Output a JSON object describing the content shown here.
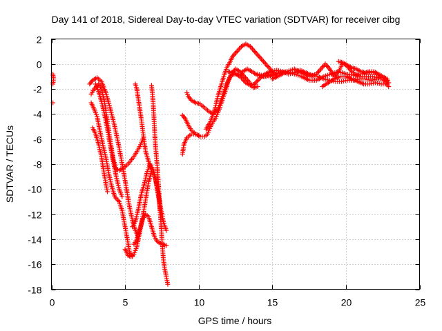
{
  "chart_data": {
    "type": "scatter",
    "title": "Day 141 of 2018, Sidereal Day-to-day VTEC variation (SDTVAR) for receiver cibg",
    "xlabel": "GPS time / hours",
    "ylabel": "SDTVAR / TECUs",
    "xlim": [
      0,
      25
    ],
    "ylim": [
      -18,
      2
    ],
    "xticks": [
      0,
      5,
      10,
      15,
      20,
      25
    ],
    "yticks": [
      2,
      0,
      -2,
      -4,
      -6,
      -8,
      -10,
      -12,
      -14,
      -16,
      -18
    ],
    "grid": true,
    "marker": "+",
    "color": "#ff0000",
    "series": [
      {
        "name": "arc-start-1",
        "points": [
          [
            0.1,
            -0.8
          ],
          [
            0.15,
            -1.2
          ],
          [
            0.1,
            -1.6
          ]
        ]
      },
      {
        "name": "arc-start-2",
        "points": [
          [
            0.1,
            -3.1
          ]
        ]
      },
      {
        "name": "arc-a",
        "points": [
          [
            2.6,
            -1.6
          ],
          [
            2.8,
            -1.3
          ],
          [
            3.1,
            -1.1
          ],
          [
            3.4,
            -1.4
          ],
          [
            3.7,
            -2.3
          ],
          [
            4.0,
            -3.6
          ],
          [
            4.3,
            -5.0
          ],
          [
            4.6,
            -6.7
          ],
          [
            4.9,
            -8.6
          ],
          [
            5.1,
            -10.0
          ],
          [
            5.3,
            -11.4
          ],
          [
            5.5,
            -12.5
          ],
          [
            5.7,
            -13.3
          ],
          [
            5.9,
            -13.8
          ]
        ]
      },
      {
        "name": "arc-b",
        "points": [
          [
            2.7,
            -2.4
          ],
          [
            2.9,
            -2.0
          ],
          [
            3.2,
            -1.6
          ],
          [
            3.4,
            -2.0
          ],
          [
            3.6,
            -3.0
          ],
          [
            3.8,
            -4.6
          ],
          [
            4.0,
            -6.2
          ],
          [
            4.2,
            -7.6
          ],
          [
            4.4,
            -8.4
          ],
          [
            4.6,
            -8.5
          ],
          [
            4.9,
            -8.3
          ],
          [
            5.2,
            -8.0
          ],
          [
            5.6,
            -7.4
          ],
          [
            6.0,
            -6.6
          ],
          [
            6.2,
            -6.0
          ]
        ]
      },
      {
        "name": "arc-c",
        "points": [
          [
            2.7,
            -3.1
          ],
          [
            2.9,
            -3.6
          ],
          [
            3.1,
            -4.2
          ],
          [
            3.3,
            -5.4
          ],
          [
            3.5,
            -6.5
          ],
          [
            3.7,
            -7.5
          ],
          [
            3.9,
            -8.8
          ],
          [
            4.1,
            -9.8
          ],
          [
            4.3,
            -10.6
          ],
          [
            4.6,
            -11.0
          ],
          [
            4.8,
            -11.7
          ],
          [
            5.0,
            -13.0
          ],
          [
            5.2,
            -14.3
          ],
          [
            5.3,
            -15.0
          ],
          [
            5.5,
            -15.4
          ]
        ]
      },
      {
        "name": "arc-d",
        "points": [
          [
            2.8,
            -5.1
          ],
          [
            3.0,
            -5.6
          ],
          [
            3.2,
            -6.4
          ],
          [
            3.4,
            -7.4
          ],
          [
            3.5,
            -8.2
          ],
          [
            3.6,
            -8.9
          ],
          [
            3.7,
            -9.6
          ],
          [
            3.8,
            -10.2
          ]
        ]
      },
      {
        "name": "arc-e",
        "points": [
          [
            3.0,
            -1.6
          ],
          [
            3.2,
            -2.2
          ],
          [
            3.4,
            -3.0
          ],
          [
            3.6,
            -4.0
          ],
          [
            3.8,
            -5.2
          ],
          [
            4.0,
            -6.5
          ],
          [
            4.2,
            -7.8
          ],
          [
            4.4,
            -9.0
          ],
          [
            4.6,
            -10.0
          ],
          [
            4.8,
            -10.6
          ]
        ]
      },
      {
        "name": "arc-f",
        "points": [
          [
            5.0,
            -14.8
          ],
          [
            5.2,
            -15.3
          ],
          [
            5.4,
            -15.4
          ],
          [
            5.6,
            -15.2
          ],
          [
            5.8,
            -14.6
          ],
          [
            6.0,
            -13.4
          ],
          [
            6.2,
            -12.2
          ],
          [
            6.4,
            -10.8
          ],
          [
            6.6,
            -9.4
          ],
          [
            6.8,
            -8.6
          ],
          [
            7.0,
            -8.8
          ],
          [
            7.2,
            -10.0
          ],
          [
            7.4,
            -11.4
          ],
          [
            7.6,
            -12.6
          ],
          [
            7.8,
            -13.3
          ]
        ]
      },
      {
        "name": "arc-g",
        "points": [
          [
            5.6,
            -14.4
          ],
          [
            5.8,
            -14.0
          ],
          [
            6.0,
            -13.2
          ],
          [
            6.2,
            -12.4
          ],
          [
            6.4,
            -12.0
          ],
          [
            6.6,
            -12.2
          ],
          [
            6.8,
            -13.0
          ],
          [
            7.0,
            -13.8
          ],
          [
            7.2,
            -14.2
          ],
          [
            7.5,
            -14.4
          ],
          [
            7.8,
            -14.5
          ]
        ]
      },
      {
        "name": "arc-h",
        "points": [
          [
            5.5,
            -13.0
          ],
          [
            5.7,
            -12.6
          ],
          [
            5.9,
            -11.6
          ],
          [
            6.1,
            -10.4
          ],
          [
            6.3,
            -9.6
          ],
          [
            6.5,
            -8.6
          ],
          [
            6.7,
            -8.0
          ],
          [
            6.9,
            -8.4
          ],
          [
            7.1,
            -9.4
          ],
          [
            7.3,
            -10.8
          ],
          [
            7.4,
            -12.0
          ]
        ]
      },
      {
        "name": "arc-i",
        "points": [
          [
            5.7,
            -1.6
          ],
          [
            5.8,
            -2.0
          ],
          [
            5.9,
            -2.8
          ],
          [
            6.0,
            -3.6
          ],
          [
            6.1,
            -4.4
          ],
          [
            6.2,
            -5.3
          ],
          [
            6.3,
            -6.2
          ],
          [
            6.4,
            -7.0
          ],
          [
            6.6,
            -7.8
          ],
          [
            6.8,
            -8.6
          ]
        ]
      },
      {
        "name": "arc-j",
        "points": [
          [
            6.8,
            -1.7
          ],
          [
            6.85,
            -2.3
          ],
          [
            6.9,
            -3.0
          ],
          [
            6.95,
            -4.0
          ],
          [
            7.0,
            -5.2
          ],
          [
            7.05,
            -6.3
          ],
          [
            7.1,
            -7.0
          ],
          [
            7.2,
            -8.4
          ],
          [
            7.3,
            -10.2
          ],
          [
            7.4,
            -12.0
          ],
          [
            7.5,
            -14.0
          ],
          [
            7.6,
            -15.6
          ],
          [
            7.7,
            -16.4
          ],
          [
            7.8,
            -17.0
          ],
          [
            7.9,
            -17.6
          ]
        ]
      },
      {
        "name": "arc-k",
        "points": [
          [
            8.9,
            -7.2
          ],
          [
            9.0,
            -6.4
          ],
          [
            9.2,
            -5.9
          ],
          [
            9.5,
            -5.6
          ],
          [
            9.8,
            -5.6
          ],
          [
            10.1,
            -5.8
          ],
          [
            10.4,
            -5.8
          ],
          [
            10.6,
            -5.6
          ],
          [
            10.8,
            -5.0
          ],
          [
            11.0,
            -4.6
          ],
          [
            11.2,
            -4.2
          ],
          [
            11.4,
            -3.6
          ],
          [
            11.6,
            -2.9
          ],
          [
            11.8,
            -2.2
          ],
          [
            12.0,
            -1.4
          ],
          [
            12.2,
            -0.8
          ],
          [
            12.5,
            -0.4
          ],
          [
            12.8,
            -0.6
          ],
          [
            13.1,
            -1.0
          ],
          [
            13.4,
            -1.4
          ],
          [
            13.7,
            -1.9
          ],
          [
            14.0,
            -1.8
          ]
        ]
      },
      {
        "name": "arc-l",
        "points": [
          [
            8.9,
            -4.1
          ],
          [
            9.1,
            -4.4
          ],
          [
            9.3,
            -4.9
          ],
          [
            9.5,
            -5.3
          ],
          [
            9.8,
            -5.6
          ],
          [
            10.0,
            -5.7
          ]
        ]
      },
      {
        "name": "arc-m",
        "points": [
          [
            9.2,
            -2.3
          ],
          [
            9.3,
            -2.6
          ],
          [
            9.5,
            -2.9
          ],
          [
            9.8,
            -3.1
          ],
          [
            10.1,
            -3.2
          ],
          [
            10.4,
            -3.5
          ],
          [
            10.7,
            -3.8
          ],
          [
            11.0,
            -4.0
          ],
          [
            11.3,
            -3.6
          ],
          [
            11.6,
            -2.6
          ],
          [
            11.9,
            -1.6
          ],
          [
            12.2,
            -0.9
          ],
          [
            12.5,
            -0.8
          ],
          [
            12.8,
            -1.0
          ],
          [
            13.0,
            -0.6
          ],
          [
            13.3,
            -0.4
          ],
          [
            13.6,
            -0.6
          ],
          [
            14.0,
            -0.9
          ],
          [
            14.4,
            -1.0
          ],
          [
            14.8,
            -0.9
          ],
          [
            15.2,
            -0.8
          ]
        ]
      },
      {
        "name": "arc-n",
        "points": [
          [
            10.5,
            -5.2
          ],
          [
            10.8,
            -4.6
          ],
          [
            11.1,
            -3.6
          ],
          [
            11.3,
            -2.6
          ],
          [
            11.5,
            -1.8
          ],
          [
            11.7,
            -1.0
          ],
          [
            11.9,
            -0.3
          ],
          [
            12.1,
            0.1
          ],
          [
            12.3,
            0.6
          ],
          [
            12.6,
            1.0
          ],
          [
            12.9,
            1.4
          ],
          [
            13.2,
            1.6
          ],
          [
            13.5,
            1.4
          ],
          [
            13.8,
            1.0
          ],
          [
            14.1,
            0.6
          ],
          [
            14.4,
            0.2
          ],
          [
            14.7,
            -0.2
          ],
          [
            15.0,
            -0.6
          ],
          [
            15.3,
            -0.9
          ]
        ]
      },
      {
        "name": "arc-o",
        "points": [
          [
            12.0,
            -0.6
          ],
          [
            12.3,
            -0.7
          ],
          [
            12.6,
            -0.8
          ],
          [
            12.9,
            -1.1
          ],
          [
            13.2,
            -1.5
          ],
          [
            13.5,
            -1.7
          ],
          [
            13.8,
            -1.6
          ],
          [
            14.1,
            -1.2
          ],
          [
            14.5,
            -0.8
          ],
          [
            14.9,
            -0.6
          ],
          [
            15.3,
            -0.5
          ],
          [
            15.7,
            -0.6
          ],
          [
            16.1,
            -0.8
          ],
          [
            16.5,
            -0.7
          ],
          [
            16.9,
            -0.5
          ],
          [
            17.3,
            -0.7
          ],
          [
            17.7,
            -0.9
          ],
          [
            18.1,
            -1.0
          ],
          [
            18.5,
            -1.2
          ],
          [
            18.9,
            -1.3
          ],
          [
            19.3,
            -1.4
          ],
          [
            19.7,
            -1.4
          ],
          [
            20.1,
            -1.3
          ],
          [
            20.5,
            -1.3
          ],
          [
            20.9,
            -1.2
          ],
          [
            21.3,
            -1.2
          ],
          [
            21.7,
            -1.3
          ],
          [
            22.1,
            -1.2
          ],
          [
            22.5,
            -1.2
          ],
          [
            22.8,
            -1.3
          ]
        ]
      },
      {
        "name": "arc-p",
        "points": [
          [
            14.0,
            -0.8
          ],
          [
            14.5,
            -1.0
          ],
          [
            15.0,
            -0.9
          ],
          [
            15.5,
            -0.7
          ],
          [
            16.0,
            -0.6
          ],
          [
            16.5,
            -0.8
          ],
          [
            17.0,
            -1.0
          ],
          [
            17.5,
            -1.3
          ],
          [
            18.0,
            -1.3
          ],
          [
            18.5,
            -1.0
          ],
          [
            19.0,
            -0.8
          ],
          [
            19.5,
            -0.6
          ],
          [
            20.0,
            -0.8
          ],
          [
            20.5,
            -0.9
          ],
          [
            21.0,
            -0.8
          ],
          [
            21.5,
            -0.7
          ],
          [
            22.0,
            -0.7
          ],
          [
            22.5,
            -1.2
          ],
          [
            22.9,
            -1.8
          ]
        ]
      },
      {
        "name": "arc-q",
        "points": [
          [
            15.0,
            -1.2
          ],
          [
            15.5,
            -0.9
          ],
          [
            16.0,
            -0.6
          ],
          [
            16.5,
            -0.4
          ],
          [
            17.0,
            -0.7
          ],
          [
            17.5,
            -1.0
          ],
          [
            18.0,
            -0.8
          ],
          [
            18.3,
            -0.4
          ],
          [
            18.6,
            0.0
          ],
          [
            18.9,
            -0.4
          ],
          [
            19.2,
            -1.0
          ],
          [
            19.5,
            -0.6
          ],
          [
            19.8,
            0.1
          ],
          [
            20.1,
            -0.2
          ],
          [
            20.4,
            -0.6
          ],
          [
            20.7,
            -0.9
          ],
          [
            21.0,
            -1.0
          ],
          [
            21.4,
            -1.0
          ],
          [
            21.8,
            -1.0
          ],
          [
            22.2,
            -1.1
          ]
        ]
      },
      {
        "name": "arc-r",
        "points": [
          [
            18.4,
            -1.8
          ],
          [
            18.8,
            -1.5
          ],
          [
            19.2,
            -1.2
          ],
          [
            19.6,
            -1.0
          ],
          [
            20.0,
            -1.0
          ],
          [
            20.4,
            -1.2
          ],
          [
            20.8,
            -1.4
          ],
          [
            21.2,
            -1.6
          ],
          [
            21.6,
            -1.6
          ],
          [
            22.0,
            -1.5
          ],
          [
            22.4,
            -1.6
          ],
          [
            22.8,
            -1.6
          ]
        ]
      },
      {
        "name": "arc-s",
        "points": [
          [
            19.5,
            0.2
          ],
          [
            19.8,
            0.1
          ],
          [
            20.1,
            -0.1
          ],
          [
            20.4,
            -0.3
          ],
          [
            20.7,
            -0.4
          ],
          [
            21.0,
            -0.6
          ],
          [
            21.3,
            -0.7
          ],
          [
            21.6,
            -0.6
          ],
          [
            21.9,
            -0.6
          ],
          [
            22.2,
            -0.8
          ],
          [
            22.5,
            -1.0
          ],
          [
            22.8,
            -1.2
          ],
          [
            22.9,
            -1.5
          ]
        ]
      }
    ]
  }
}
